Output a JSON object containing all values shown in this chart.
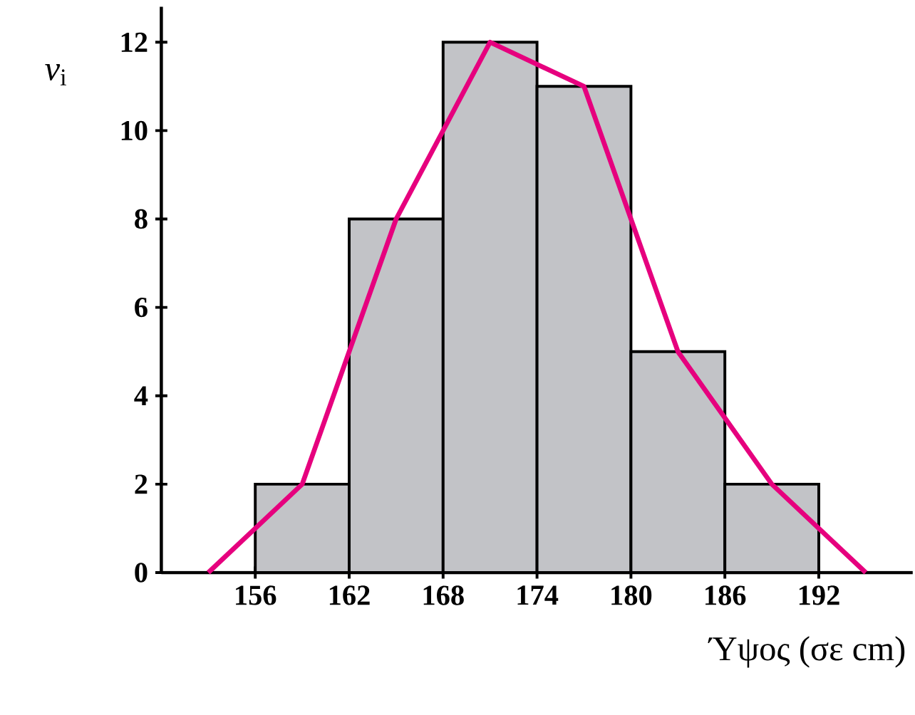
{
  "chart_data": {
    "type": "histogram",
    "xlabel": "Ύψος (σε cm)",
    "ylabel": "*ν*$_{i}$",
    "bins": [
      156,
      162,
      168,
      174,
      180,
      186,
      192
    ],
    "values": [
      2,
      8,
      12,
      11,
      5,
      2
    ],
    "color": "#c2c3c7",
    "series": [
      {
        "type": "line",
        "color": "#e6007e",
        "x": [
          153,
          159,
          165,
          171,
          177,
          183,
          189,
          195
        ],
        "values": [
          0,
          2,
          8,
          12,
          11,
          5,
          2,
          0
        ]
      }
    ],
    "xlim": [
      150,
      198
    ],
    "ylim": [
      0,
      12.8
    ],
    "xticks": [
      156,
      162,
      168,
      174,
      180,
      186,
      192
    ],
    "yticks": [
      0,
      2,
      4,
      6,
      8,
      10,
      12
    ],
    "marker": "none",
    "line_style": "solid"
  }
}
